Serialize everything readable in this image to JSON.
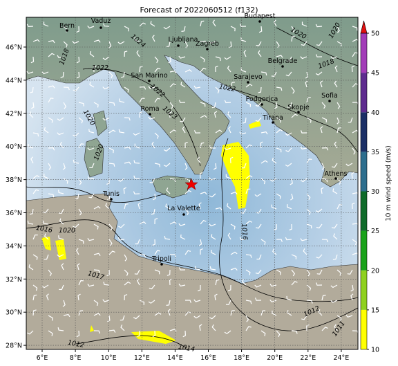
{
  "title": "Forecast of 2022060512 (f132)",
  "longitude_ticks": [
    "6°E",
    "8°E",
    "10°E",
    "12°E",
    "14°E",
    "16°E",
    "18°E",
    "20°E",
    "22°E",
    "24°E"
  ],
  "latitude_ticks": [
    "46°N",
    "44°N",
    "42°N",
    "40°N",
    "38°N",
    "36°N",
    "34°N",
    "32°N",
    "30°N",
    "28°N"
  ],
  "cities": [
    "Bern",
    "Vaduz",
    "Budapest",
    "Ljubljana",
    "Zagreb",
    "Belgrade",
    "San Marino",
    "Sarajevo",
    "Roma",
    "Podgorica",
    "Skopje",
    "Sofia",
    "Tirana",
    "Athens",
    "Tunis",
    "La Valette",
    "Tripoli"
  ],
  "isobar_labels": [
    "1022",
    "1024",
    "1020",
    "1020",
    "1018",
    "1022",
    "1022",
    "1023",
    "1020",
    "1020",
    "1018",
    "1016",
    "1020",
    "1017",
    "1016",
    "1012",
    "1012",
    "1011",
    "1014"
  ],
  "colorbar": {
    "label": "10 m wind speed (m/s)",
    "ticks": [
      10,
      15,
      20,
      25,
      30,
      35,
      40,
      45,
      50
    ],
    "colors": [
      "#ffff00",
      "#8fd11f",
      "#1aa21a",
      "#0f6b2a",
      "#2d6e8e",
      "#1b2f66",
      "#5e2b8f",
      "#a23cb8"
    ],
    "extend_color": "#e01010"
  }
}
